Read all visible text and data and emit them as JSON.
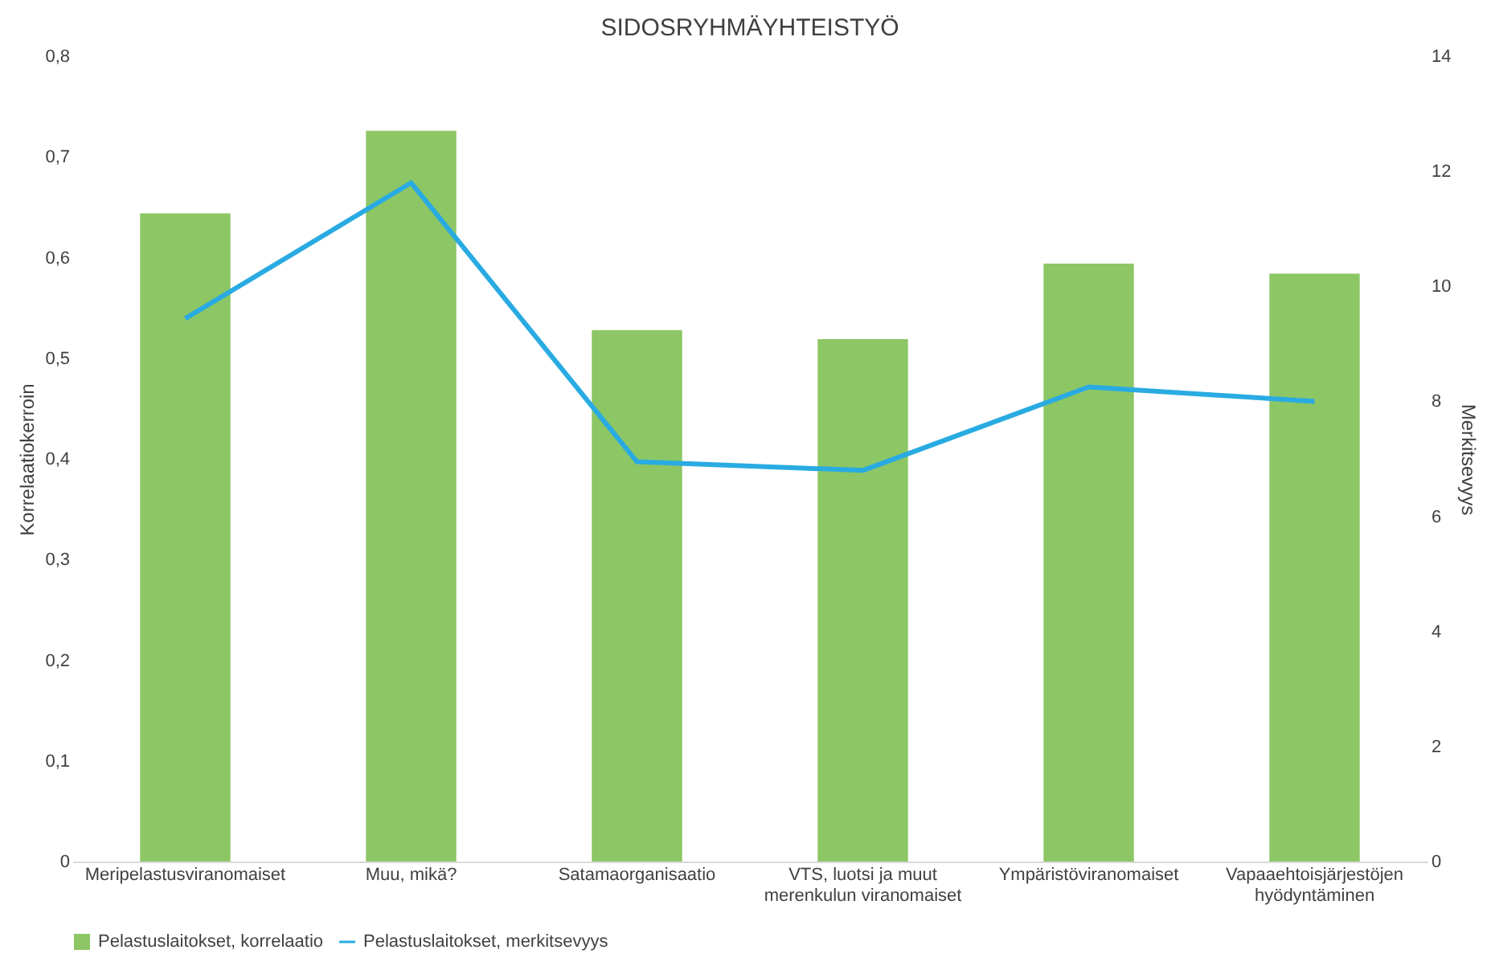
{
  "chart_data": {
    "type": "bar",
    "title": "SIDOSRYHMÄYHTEISTYÖ",
    "ylabel": "Korrelaatiokerroin",
    "y2label": "Merkitsevyys",
    "categories": [
      "Meripelastusviranomaiset",
      "Muu, mikä?",
      "Satamaorganisaatio",
      "VTS, luotsi ja muut merenkulun viranomaiset",
      "Ympäristöviranomaiset",
      "Vapaaehtoisjärjestöjen hyödyntäminen"
    ],
    "series": [
      {
        "name": "Pelastuslaitokset, korrelaatio",
        "color": "#8cc665",
        "values": [
          0.644,
          0.726,
          0.528,
          0.519,
          0.594,
          0.584
        ]
      },
      {
        "name": "Pelastuslaitokset, merkitsevyys",
        "type": "line",
        "axis": "y2",
        "color": "#29abe2",
        "values": [
          9.44,
          11.8,
          6.95,
          6.8,
          8.25,
          8.0
        ]
      }
    ],
    "ylim": [
      0,
      0.8
    ],
    "yticks": [
      {
        "value": 0,
        "label": "0"
      },
      {
        "value": 0.1,
        "label": "0,1"
      },
      {
        "value": 0.2,
        "label": "0,2"
      },
      {
        "value": 0.3,
        "label": "0,3"
      },
      {
        "value": 0.4,
        "label": "0,4"
      },
      {
        "value": 0.5,
        "label": "0,5"
      },
      {
        "value": 0.6,
        "label": "0,6"
      },
      {
        "value": 0.7,
        "label": "0,7"
      },
      {
        "value": 0.8,
        "label": "0,8"
      }
    ],
    "y2lim": [
      0,
      14
    ],
    "y2ticks": [
      0,
      2,
      4,
      6,
      8,
      10,
      12,
      14
    ],
    "legend": "bottom",
    "grid": false
  }
}
